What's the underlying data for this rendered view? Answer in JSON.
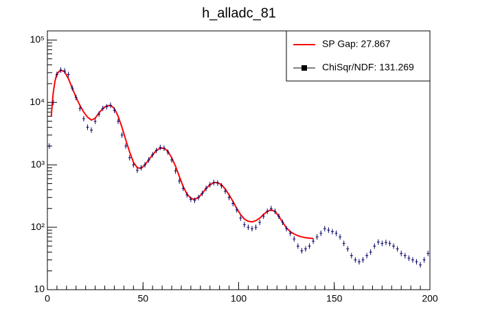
{
  "chart_data": {
    "type": "scatter",
    "title": "h_alladc_81",
    "log_y": true,
    "xlim": [
      0,
      200
    ],
    "xticks": [
      0,
      50,
      100,
      150,
      200
    ],
    "ylim": [
      10,
      140000
    ],
    "yticks": [
      {
        "value": 10,
        "label": "10"
      },
      {
        "value": 100,
        "label": "10²"
      },
      {
        "value": 1000,
        "label": "10³"
      },
      {
        "value": 10000,
        "label": "10⁴"
      },
      {
        "value": 100000,
        "label": "10⁵"
      }
    ],
    "legend": "top-right",
    "series": [
      {
        "name": "SP Gap: 27.867",
        "color": "#ff0000",
        "style": "line",
        "x": [
          2,
          3,
          4,
          5,
          7,
          9,
          11,
          13,
          15,
          17,
          19,
          21,
          23,
          25,
          27,
          29,
          31,
          33,
          35,
          37,
          39,
          41,
          43,
          45,
          47,
          49,
          51,
          53,
          55,
          57,
          59,
          61,
          63,
          65,
          67,
          69,
          71,
          73,
          75,
          77,
          79,
          81,
          83,
          85,
          87,
          89,
          91,
          93,
          95,
          97,
          99,
          101,
          103,
          105,
          107,
          109,
          111,
          113,
          115,
          117,
          119,
          121,
          123,
          125,
          127,
          129,
          131,
          133,
          135,
          137,
          139
        ],
        "values": [
          6000,
          14000,
          22000,
          29000,
          33000,
          31000,
          24000,
          17000,
          12000,
          9000,
          7000,
          5800,
          5200,
          5600,
          6800,
          8000,
          8800,
          9000,
          8000,
          6000,
          4000,
          2500,
          1600,
          1100,
          900,
          880,
          1000,
          1200,
          1450,
          1700,
          1850,
          1850,
          1650,
          1300,
          950,
          650,
          450,
          340,
          290,
          280,
          300,
          350,
          420,
          480,
          520,
          520,
          480,
          410,
          330,
          260,
          200,
          160,
          135,
          125,
          122,
          128,
          140,
          160,
          180,
          190,
          180,
          150,
          120,
          98,
          85,
          78,
          73,
          70,
          68,
          67,
          66
        ]
      },
      {
        "name": "ChiSqr/NDF: 131.269",
        "color": "#000066",
        "style": "marker",
        "x": [
          1,
          3,
          5,
          7,
          9,
          11,
          13,
          15,
          17,
          19,
          21,
          23,
          25,
          27,
          29,
          31,
          33,
          35,
          37,
          39,
          41,
          43,
          45,
          47,
          49,
          51,
          53,
          55,
          57,
          59,
          61,
          63,
          65,
          67,
          69,
          71,
          73,
          75,
          77,
          79,
          81,
          83,
          85,
          87,
          89,
          91,
          93,
          95,
          97,
          99,
          101,
          103,
          105,
          107,
          109,
          111,
          113,
          115,
          117,
          119,
          121,
          123,
          125,
          127,
          129,
          131,
          133,
          135,
          137,
          139,
          141,
          143,
          145,
          147,
          149,
          151,
          153,
          155,
          157,
          159,
          161,
          163,
          165,
          167,
          169,
          171,
          173,
          175,
          177,
          179,
          181,
          183,
          185,
          187,
          189,
          191,
          193,
          195,
          197,
          199
        ],
        "values": [
          2000,
          10000,
          28000,
          33000,
          32000,
          28000,
          17000,
          12000,
          8000,
          5500,
          4000,
          3600,
          5000,
          6500,
          8000,
          8500,
          9000,
          7500,
          5000,
          3000,
          2000,
          1300,
          1000,
          820,
          900,
          1000,
          1200,
          1450,
          1700,
          1900,
          1850,
          1600,
          1200,
          800,
          550,
          420,
          330,
          280,
          270,
          300,
          350,
          420,
          480,
          520,
          510,
          460,
          380,
          300,
          240,
          190,
          140,
          110,
          100,
          95,
          100,
          120,
          150,
          180,
          200,
          180,
          150,
          120,
          95,
          80,
          65,
          50,
          42,
          45,
          50,
          60,
          70,
          80,
          95,
          90,
          85,
          80,
          70,
          55,
          45,
          35,
          30,
          28,
          30,
          35,
          40,
          50,
          58,
          55,
          57,
          55,
          50,
          45,
          38,
          35,
          32,
          30,
          28,
          25,
          30,
          38
        ]
      }
    ]
  }
}
